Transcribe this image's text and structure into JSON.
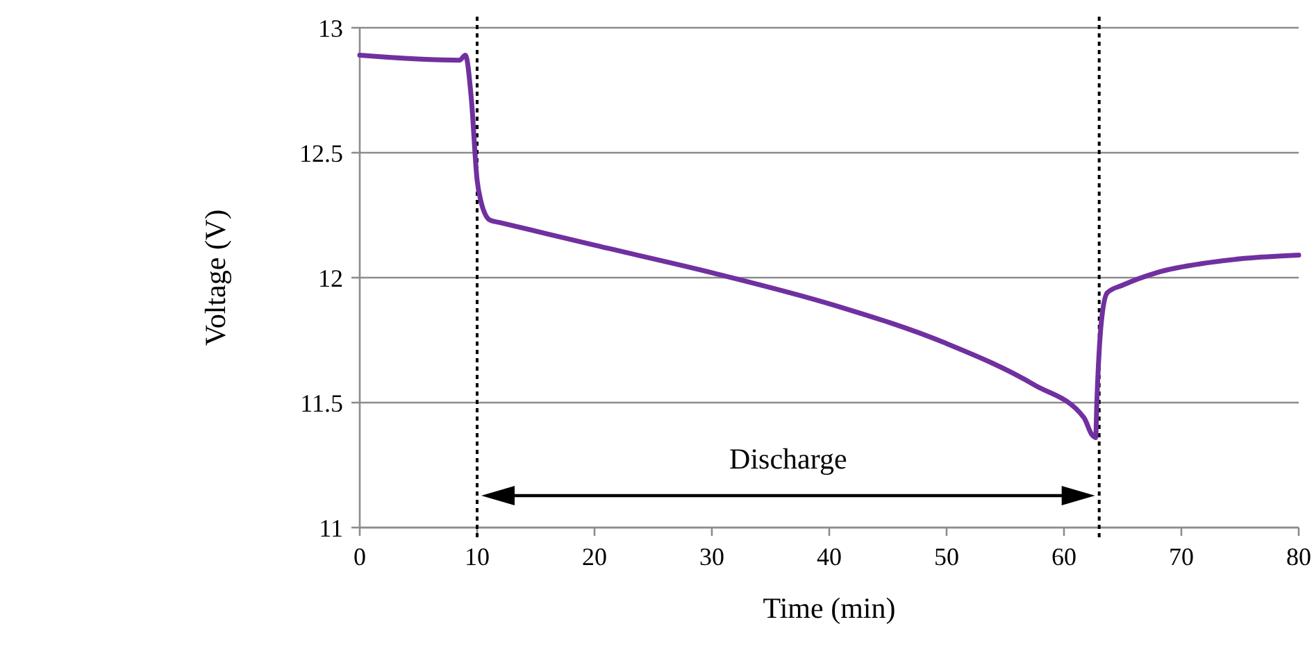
{
  "chart_data": {
    "type": "line",
    "xlabel": "Time (min)",
    "ylabel": "Voltage (V)",
    "xlim": [
      0,
      80
    ],
    "xticks": [
      0,
      10,
      20,
      30,
      40,
      50,
      60,
      70,
      80
    ],
    "ylim": [
      11,
      13
    ],
    "yticks": [
      11,
      11.5,
      12,
      12.5,
      13
    ],
    "grid": "y",
    "line_style": "solid",
    "marker": "none",
    "series": [
      {
        "color": "#7030a0",
        "x": [
          0,
          8.5,
          9,
          9.5,
          10,
          10.3,
          11.1,
          12,
          20,
          30,
          40.4,
          49.8,
          57.5,
          61.7,
          62.4,
          62.7,
          62.8,
          63.2,
          63.7,
          65,
          67.9,
          72.3,
          80
        ],
        "values": [
          12.89,
          12.87,
          12.89,
          12.72,
          12.39,
          12.31,
          12.23,
          12.22,
          12.13,
          12.02,
          11.89,
          11.74,
          11.57,
          11.44,
          11.37,
          11.36,
          11.5,
          11.83,
          11.94,
          11.97,
          12.02,
          12.06,
          12.09
        ]
      }
    ],
    "ref_lines": [
      {
        "axis": "x",
        "value": 10,
        "line_style": "dotted",
        "color": "#000000"
      },
      {
        "axis": "x",
        "value": 63,
        "line_style": "dotted",
        "color": "#000000"
      }
    ],
    "annotations": [
      "Discharge"
    ]
  }
}
